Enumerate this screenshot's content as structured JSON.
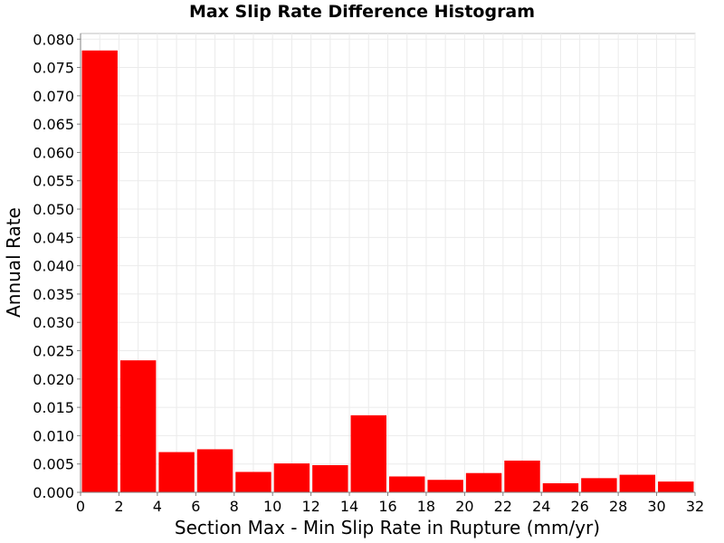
{
  "chart_data": {
    "type": "bar",
    "title": "Max Slip Rate Difference Histogram",
    "xlabel": "Section Max - Min Slip Rate in Rupture (mm/yr)",
    "ylabel": "Annual Rate",
    "xlim": [
      0,
      32
    ],
    "ylim": [
      0,
      0.081
    ],
    "x_ticks": [
      "0",
      "2",
      "4",
      "6",
      "8",
      "10",
      "12",
      "14",
      "16",
      "18",
      "20",
      "22",
      "24",
      "26",
      "28",
      "30",
      "32"
    ],
    "y_ticks": [
      "0.000",
      "0.005",
      "0.010",
      "0.015",
      "0.020",
      "0.025",
      "0.030",
      "0.035",
      "0.040",
      "0.045",
      "0.050",
      "0.055",
      "0.060",
      "0.065",
      "0.070",
      "0.075",
      "0.080"
    ],
    "bin_width": 2,
    "bins": [
      {
        "x_start": 0,
        "value": 0.078
      },
      {
        "x_start": 2,
        "value": 0.0233
      },
      {
        "x_start": 4,
        "value": 0.0071
      },
      {
        "x_start": 6,
        "value": 0.0076
      },
      {
        "x_start": 8,
        "value": 0.0036
      },
      {
        "x_start": 10,
        "value": 0.0051
      },
      {
        "x_start": 12,
        "value": 0.0048
      },
      {
        "x_start": 14,
        "value": 0.0136
      },
      {
        "x_start": 16,
        "value": 0.0028
      },
      {
        "x_start": 18,
        "value": 0.0022
      },
      {
        "x_start": 20,
        "value": 0.0034
      },
      {
        "x_start": 22,
        "value": 0.0056
      },
      {
        "x_start": 24,
        "value": 0.0016
      },
      {
        "x_start": 26,
        "value": 0.0025
      },
      {
        "x_start": 28,
        "value": 0.0031
      },
      {
        "x_start": 30,
        "value": 0.0019
      }
    ],
    "bar_color": "#ff0000",
    "grid": true,
    "legend": "none"
  }
}
